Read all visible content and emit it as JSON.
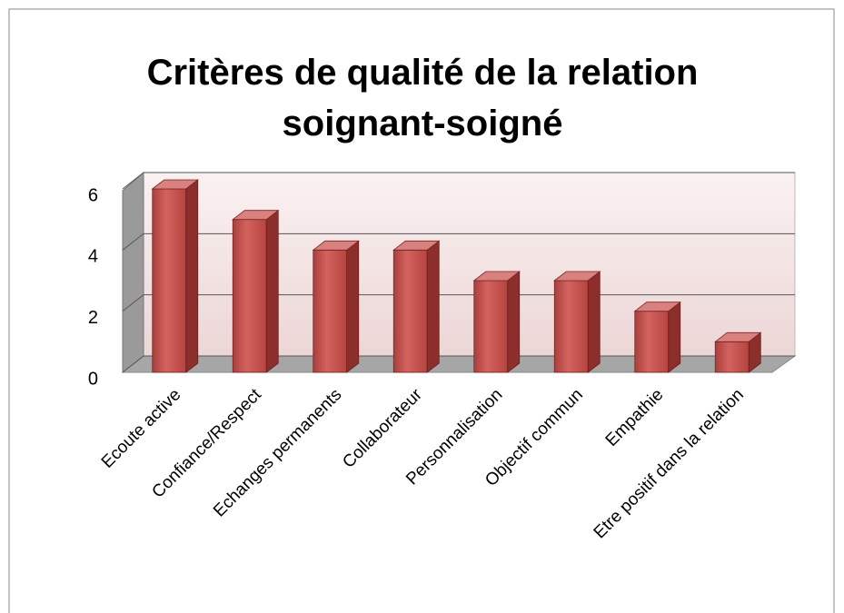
{
  "chart_data": {
    "type": "bar3d",
    "title": "Critères de qualité de la relation soignant-soigné",
    "categories": [
      "Ecoute active",
      "Confiance/Respect",
      "Echanges permanents",
      "Collaborateur",
      "Personnalisation",
      "Objectif commun",
      "Empathie",
      "Etre positif dans la relation"
    ],
    "values": [
      6,
      5,
      4,
      4,
      3,
      3,
      2,
      1
    ],
    "color": "#c0504d",
    "ylim": [
      0,
      6
    ],
    "yticks": [
      0,
      2,
      4,
      6
    ],
    "grid": true
  }
}
